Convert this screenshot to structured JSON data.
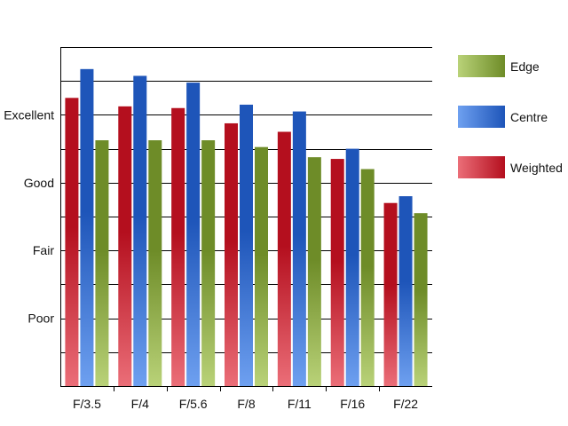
{
  "chart_data": {
    "type": "bar",
    "categories": [
      "F/3.5",
      "F/4",
      "F/5.6",
      "F/8",
      "F/11",
      "F/16",
      "F/22"
    ],
    "y_tick_labels": [
      "Poor",
      "Fair",
      "Good",
      "Excellent"
    ],
    "y_tick_values": [
      2,
      4,
      6,
      8
    ],
    "ylim": [
      0,
      10
    ],
    "grid": true,
    "legend_position": "right",
    "series": [
      {
        "name": "Weighted",
        "values": [
          8.5,
          8.25,
          8.2,
          7.75,
          7.5,
          6.7,
          5.4
        ],
        "color_top": "#b40f1e",
        "color_bottom": "#eb6e78"
      },
      {
        "name": "Centre",
        "values": [
          9.35,
          9.15,
          8.95,
          8.3,
          8.1,
          7.0,
          5.6
        ],
        "color_top": "#1e55b9",
        "color_bottom": "#6ea0f0"
      },
      {
        "name": "Edge",
        "values": [
          7.25,
          7.25,
          7.25,
          7.05,
          6.75,
          6.4,
          5.1
        ],
        "color_top": "#6e8c28",
        "color_bottom": "#b9d278"
      }
    ],
    "legend_order": [
      "Edge",
      "Centre",
      "Weighted"
    ]
  }
}
